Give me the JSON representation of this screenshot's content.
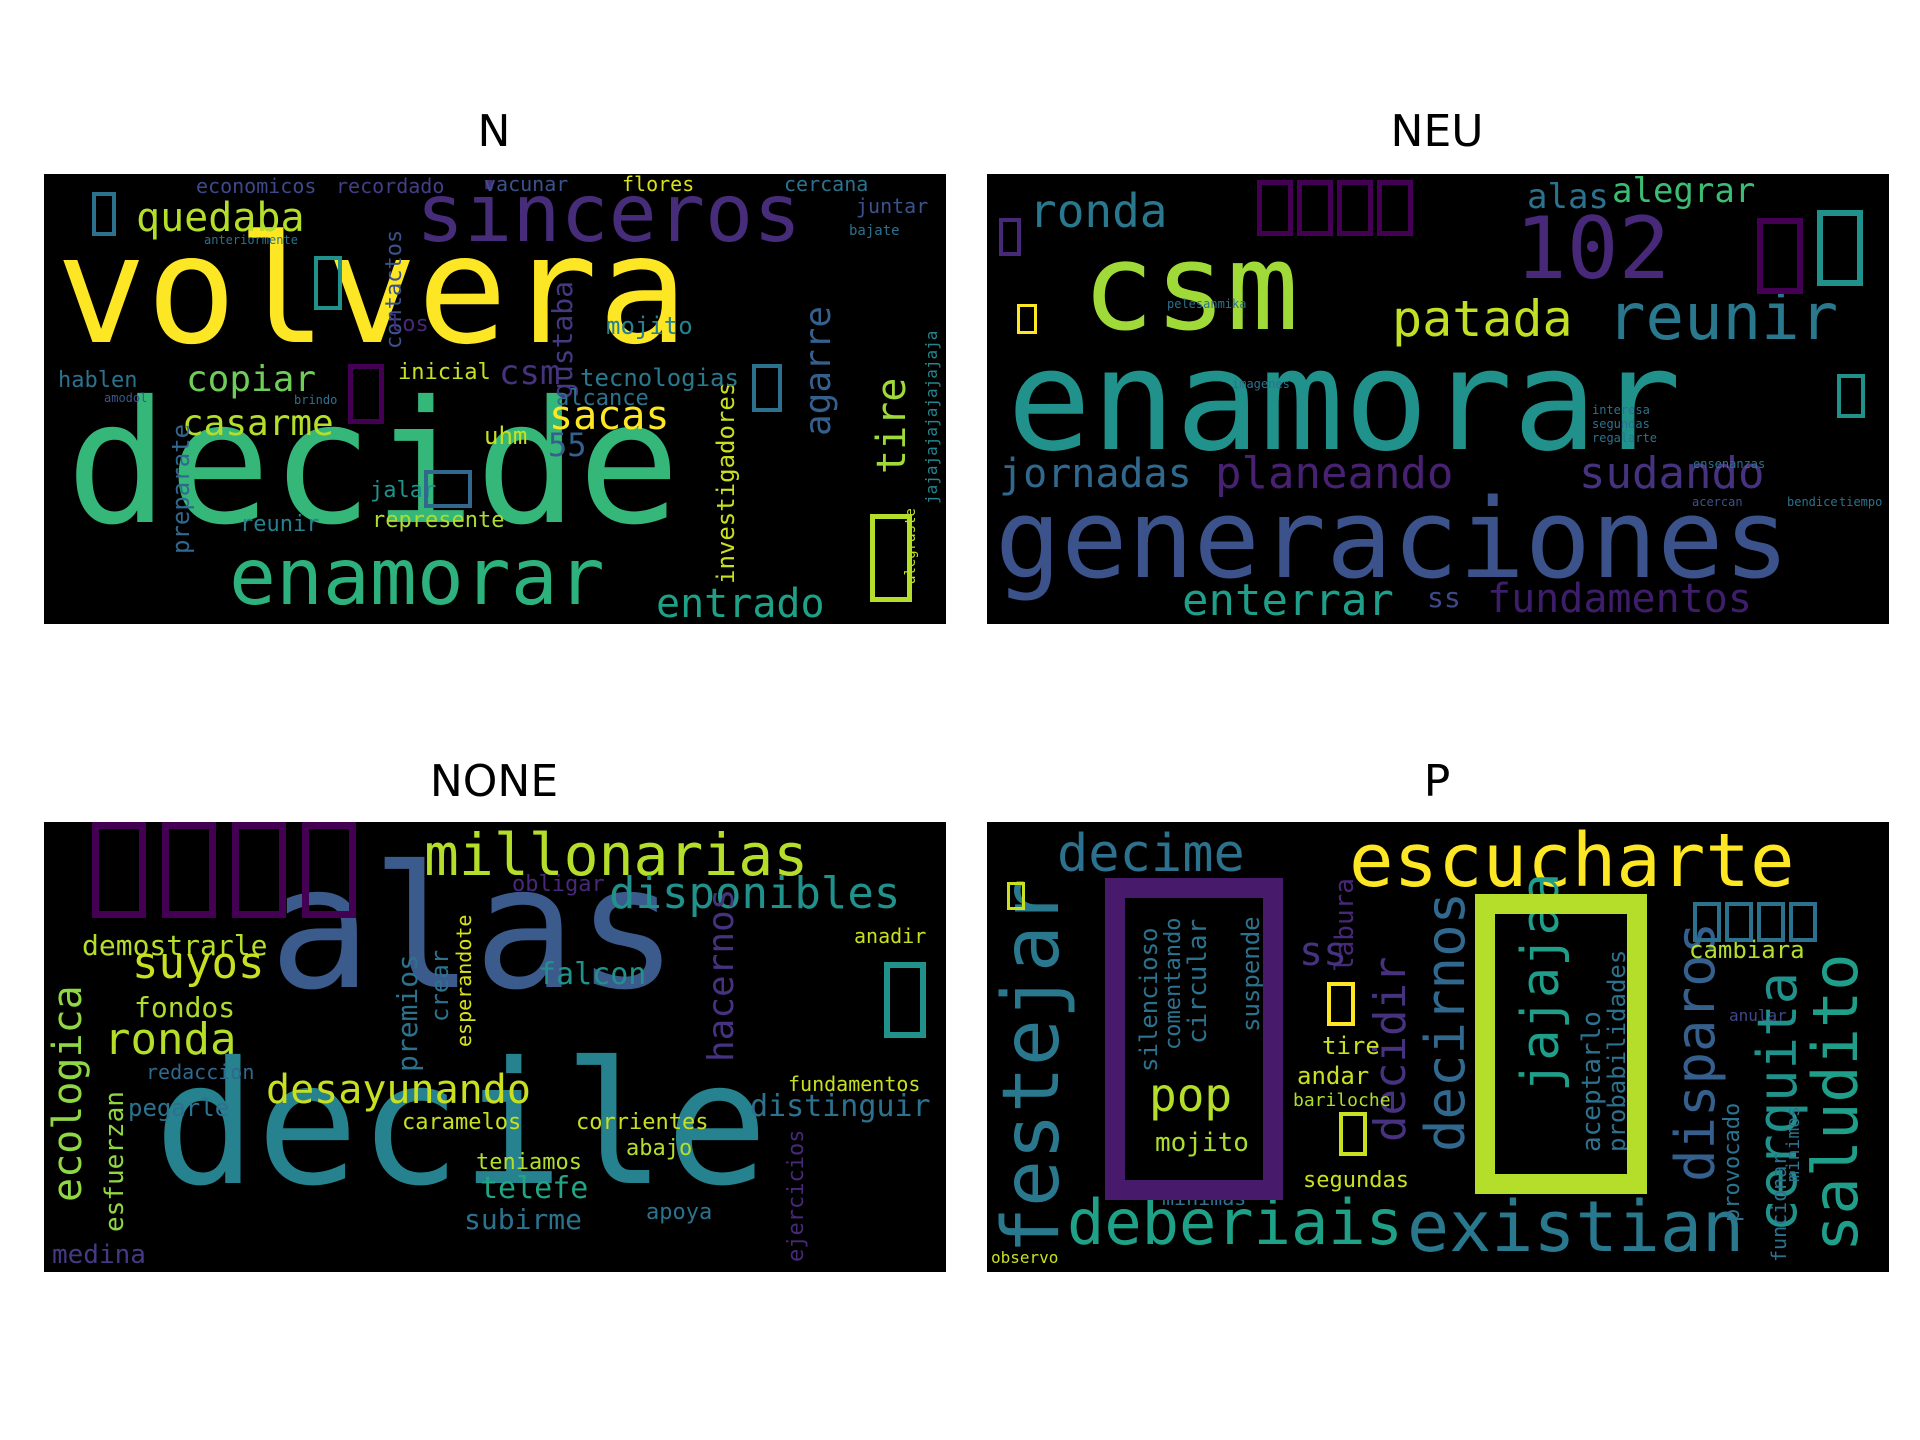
{
  "panels": [
    {
      "title": "N",
      "words": [
        {
          "t": "volvera",
          "c": "#fde725"
        },
        {
          "t": "decide",
          "c": "#35b779"
        },
        {
          "t": "sinceros",
          "c": "#472c7a"
        },
        {
          "t": "enamorar",
          "c": "#2db27d"
        },
        {
          "t": "quedaba",
          "c": "#b5de2b"
        },
        {
          "t": "copiar",
          "c": "#6ece58"
        },
        {
          "t": "casarme",
          "c": "#b5de2b"
        },
        {
          "t": "sacas",
          "c": "#fde725"
        },
        {
          "t": "entrado",
          "c": "#1fa187"
        },
        {
          "t": "tire",
          "c": "#9fda3a"
        },
        {
          "t": "agarre",
          "c": "#355f8d"
        },
        {
          "t": "investigadores",
          "c": "#c8e020"
        },
        {
          "t": "preparate",
          "c": "#31688e"
        },
        {
          "t": "contactos",
          "c": "#3b528b"
        },
        {
          "t": "gustaba",
          "c": "#443983"
        },
        {
          "t": "economicos",
          "c": "#3e4989"
        },
        {
          "t": "recordado",
          "c": "#433e85"
        },
        {
          "t": "vacunar",
          "c": "#3b528b"
        },
        {
          "t": "flores",
          "c": "#d8e219"
        },
        {
          "t": "cercana",
          "c": "#2c728e"
        },
        {
          "t": "juntar",
          "c": "#3b528b"
        },
        {
          "t": "mojito",
          "c": "#27808e"
        },
        {
          "t": "tecnologias",
          "c": "#2a788e"
        },
        {
          "t": "alcance",
          "c": "#2c728e"
        },
        {
          "t": "inicial",
          "c": "#c8e020"
        },
        {
          "t": "hablen",
          "c": "#2c728e"
        },
        {
          "t": "csm",
          "c": "#46327e"
        },
        {
          "t": "los",
          "c": "#482878"
        },
        {
          "t": "uhm",
          "c": "#c8e020"
        },
        {
          "t": "55",
          "c": "#355f8d"
        },
        {
          "t": "jalar",
          "c": "#21918c"
        },
        {
          "t": "represente",
          "c": "#addc30"
        },
        {
          "t": "reunir",
          "c": "#27808e"
        },
        {
          "t": "jajajajajajajajaja",
          "c": "#25858e"
        },
        {
          "t": "alegraste",
          "c": "#c8e020"
        },
        {
          "t": "bajate",
          "c": "#2c728e"
        },
        {
          "t": "anteriormente",
          "c": "#2c728e"
        },
        {
          "t": "amodol",
          "c": "#39568c"
        },
        {
          "t": "brindo",
          "c": "#2c728e"
        }
      ]
    },
    {
      "title": "NEU",
      "words": [
        {
          "t": "csm",
          "c": "#a0da39"
        },
        {
          "t": "enamorar",
          "c": "#21918c"
        },
        {
          "t": "generaciones",
          "c": "#3b528b"
        },
        {
          "t": "ronda",
          "c": "#2a788e"
        },
        {
          "t": "102",
          "c": "#482878"
        },
        {
          "t": "patada",
          "c": "#c2df23"
        },
        {
          "t": "reunir",
          "c": "#2a788e"
        },
        {
          "t": "alas",
          "c": "#2c728e"
        },
        {
          "t": "alegrar",
          "c": "#3dbc74"
        },
        {
          "t": "jornadas",
          "c": "#31688e"
        },
        {
          "t": "planeando",
          "c": "#482173"
        },
        {
          "t": "sudando",
          "c": "#46327e"
        },
        {
          "t": "enterrar",
          "c": "#1f9e89"
        },
        {
          "t": "fundamentos",
          "c": "#3e1e6b"
        },
        {
          "t": "ss",
          "c": "#3e4989"
        },
        {
          "t": "pelesanmika",
          "c": "#2c728e"
        },
        {
          "t": "imagenes",
          "c": "#2c728e"
        },
        {
          "t": "interesa",
          "c": "#2c728e"
        },
        {
          "t": "segundas",
          "c": "#2c728e"
        },
        {
          "t": "regalarte",
          "c": "#2c728e"
        },
        {
          "t": "ensenanzas",
          "c": "#2c728e"
        },
        {
          "t": "acercan",
          "c": "#3b528b"
        },
        {
          "t": "bendice",
          "c": "#2c728e"
        },
        {
          "t": "tiempo",
          "c": "#2c728e"
        }
      ]
    },
    {
      "title": "NONE",
      "words": [
        {
          "t": "alas",
          "c": "#3b5b8c"
        },
        {
          "t": "decile",
          "c": "#26828e"
        },
        {
          "t": "millonarias",
          "c": "#b5de2b"
        },
        {
          "t": "disponibles",
          "c": "#21918c"
        },
        {
          "t": "demostrarle",
          "c": "#b5de2b"
        },
        {
          "t": "suyos",
          "c": "#c8e020"
        },
        {
          "t": "fondos",
          "c": "#addc30"
        },
        {
          "t": "ronda",
          "c": "#b5de2b"
        },
        {
          "t": "ecologica",
          "c": "#8fd744"
        },
        {
          "t": "desayunando",
          "c": "#c8e020"
        },
        {
          "t": "falcon",
          "c": "#21918c"
        },
        {
          "t": "hacernos",
          "c": "#46327e"
        },
        {
          "t": "premios",
          "c": "#2c728e"
        },
        {
          "t": "crear",
          "c": "#2c728e"
        },
        {
          "t": "esperandote",
          "c": "#d8e219"
        },
        {
          "t": "anadir",
          "c": "#c8e020"
        },
        {
          "t": "fundamentos",
          "c": "#c8e020"
        },
        {
          "t": "distinguir",
          "c": "#2c728e"
        },
        {
          "t": "corrientes",
          "c": "#c8e020"
        },
        {
          "t": "caramelos",
          "c": "#c8e020"
        },
        {
          "t": "pegarle",
          "c": "#2c728e"
        },
        {
          "t": "esfuerzan",
          "c": "#90d743"
        },
        {
          "t": "teniamos",
          "c": "#b5de2b"
        },
        {
          "t": "telefe",
          "c": "#21a585"
        },
        {
          "t": "subirme",
          "c": "#2c728e"
        },
        {
          "t": "abajo",
          "c": "#b5de2b"
        },
        {
          "t": "apoya",
          "c": "#2c728e"
        },
        {
          "t": "medina",
          "c": "#443983"
        },
        {
          "t": "ejercicios",
          "c": "#482878"
        },
        {
          "t": "obligar",
          "c": "#482878"
        },
        {
          "t": "redaccion",
          "c": "#31688e"
        }
      ]
    },
    {
      "title": "P",
      "words": [
        {
          "t": "escucharte",
          "c": "#fde725"
        },
        {
          "t": "decime",
          "c": "#2c728e"
        },
        {
          "t": "festejar",
          "c": "#2a788e"
        },
        {
          "t": "deberiais",
          "c": "#1fa187"
        },
        {
          "t": "existian",
          "c": "#2a788e"
        },
        {
          "t": "decirnos",
          "c": "#31688e"
        },
        {
          "t": "decidir",
          "c": "#46327e"
        },
        {
          "t": "disparos",
          "c": "#355f8d"
        },
        {
          "t": "cerquita",
          "c": "#21918c"
        },
        {
          "t": "saludito",
          "c": "#1f9e89"
        },
        {
          "t": "jajajaa",
          "c": "#1f9e89"
        },
        {
          "t": "aceptarlo",
          "c": "#2c728e"
        },
        {
          "t": "probabilidades",
          "c": "#2c728e"
        },
        {
          "t": "silencioso",
          "c": "#2c728e"
        },
        {
          "t": "comentando",
          "c": "#2c728e"
        },
        {
          "t": "circular",
          "c": "#2c728e"
        },
        {
          "t": "suspende",
          "c": "#2c728e"
        },
        {
          "t": "pop",
          "c": "#b5de2b"
        },
        {
          "t": "mojito",
          "c": "#addc30"
        },
        {
          "t": "minimas",
          "c": "#2c728e"
        },
        {
          "t": "segundas",
          "c": "#c8e020"
        },
        {
          "t": "andar",
          "c": "#c8e020"
        },
        {
          "t": "tire",
          "c": "#c8e020"
        },
        {
          "t": "cambiara",
          "c": "#b5de2b"
        },
        {
          "t": "provocado",
          "c": "#2c728e"
        },
        {
          "t": "funcionar",
          "c": "#2c728e"
        },
        {
          "t": "minimos",
          "c": "#2c728e"
        },
        {
          "t": "labura",
          "c": "#482878"
        },
        {
          "t": "ss",
          "c": "#46327e"
        },
        {
          "t": "observo",
          "c": "#c8e020"
        },
        {
          "t": "bariloche",
          "c": "#addc30"
        },
        {
          "t": "anular",
          "c": "#3e4989"
        }
      ]
    }
  ]
}
